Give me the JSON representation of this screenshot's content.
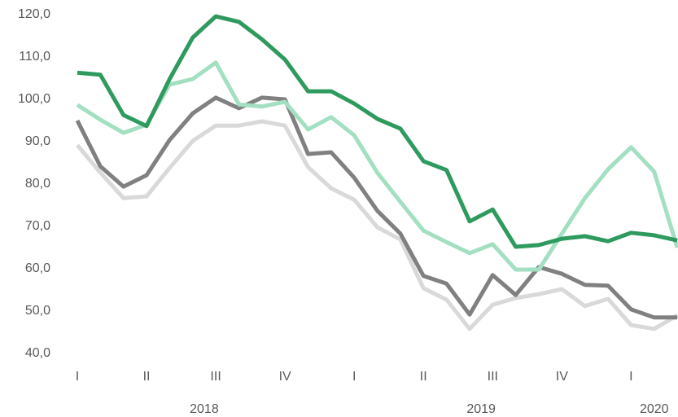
{
  "chart_data": {
    "type": "line",
    "categories": [
      "I",
      null,
      null,
      "II",
      null,
      null,
      "III",
      null,
      null,
      "IV",
      null,
      null,
      "I",
      null,
      null,
      "II",
      null,
      null,
      "III",
      null,
      null,
      "IV",
      null,
      null,
      "I",
      null,
      null
    ],
    "groups": [
      {
        "label": "2018",
        "count": 12
      },
      {
        "label": "2019",
        "count": 12
      },
      {
        "label": "2020",
        "count": 3
      }
    ],
    "series": [
      {
        "color": "#d9d9d9",
        "values": [
          89.2,
          82.7,
          76.7,
          77.1,
          83.8,
          90.2,
          93.8,
          93.8,
          94.8,
          93.8,
          84.0,
          79.0,
          76.3,
          69.8,
          66.9,
          55.4,
          52.7,
          45.8,
          51.5,
          53.1,
          54.0,
          55.2,
          51.2,
          52.9,
          46.7,
          45.8,
          49.0
        ]
      },
      {
        "color": "#808080",
        "values": [
          95.0,
          84.2,
          79.4,
          82.1,
          90.4,
          96.7,
          100.4,
          97.9,
          100.4,
          100.0,
          87.1,
          87.5,
          81.5,
          73.7,
          68.3,
          58.3,
          56.5,
          49.2,
          58.5,
          53.8,
          60.4,
          58.8,
          56.2,
          56.0,
          50.4,
          48.5,
          48.5
        ]
      },
      {
        "color": "#a3dfc1",
        "values": [
          98.7,
          95.2,
          92.1,
          94.0,
          103.5,
          104.8,
          108.7,
          98.8,
          98.3,
          99.4,
          92.9,
          95.8,
          91.5,
          82.7,
          75.8,
          69.0,
          66.3,
          63.7,
          65.8,
          59.8,
          59.8,
          68.3,
          76.7,
          83.5,
          88.7,
          82.9,
          65.0
        ]
      },
      {
        "color": "#2e9a5e",
        "values": [
          106.3,
          105.8,
          96.3,
          93.7,
          104.8,
          114.6,
          119.6,
          118.3,
          114.2,
          109.4,
          101.9,
          101.9,
          99.0,
          95.4,
          93.1,
          85.4,
          83.3,
          71.2,
          74.0,
          65.2,
          65.6,
          67.1,
          67.7,
          66.5,
          68.5,
          67.9,
          66.7
        ]
      }
    ],
    "ylim": [
      40,
      120
    ],
    "yticks": [
      {
        "value": 40,
        "label": "40,0"
      },
      {
        "value": 50,
        "label": "50,0"
      },
      {
        "value": 60,
        "label": "60,0"
      },
      {
        "value": 70,
        "label": "70,0"
      },
      {
        "value": 80,
        "label": "80,0"
      },
      {
        "value": 90,
        "label": "90,0"
      },
      {
        "value": 100,
        "label": "100,0"
      },
      {
        "value": 110,
        "label": "110,0"
      },
      {
        "value": 120,
        "label": "120,0"
      }
    ],
    "grid": false
  }
}
